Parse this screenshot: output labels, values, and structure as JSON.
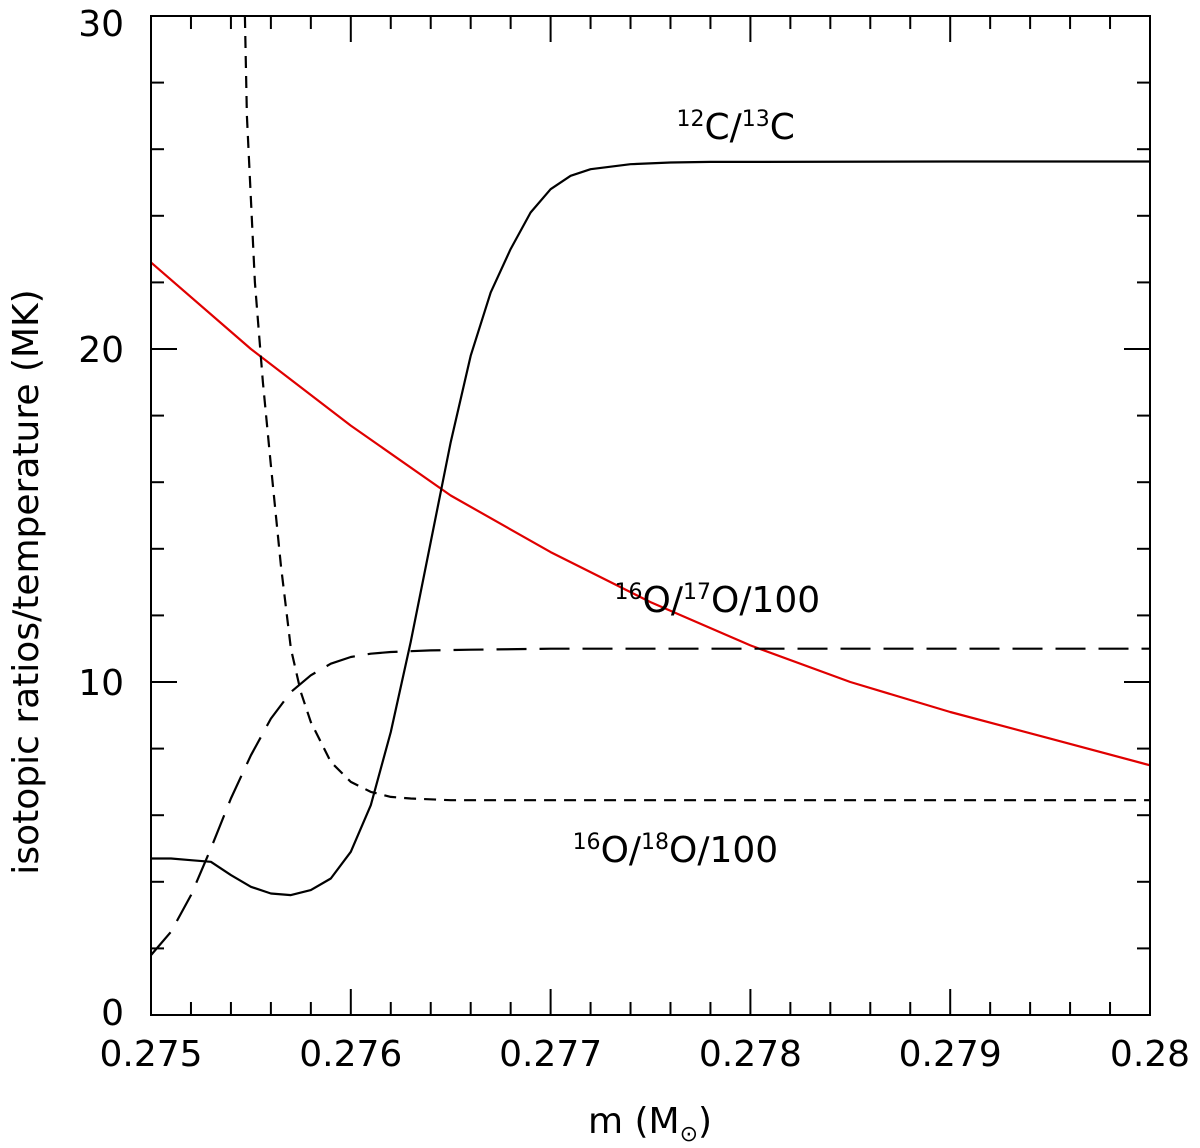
{
  "chart_data": {
    "type": "line",
    "xlabel": "m (M",
    "xlabel_sub": "⊙",
    "xlabel_close": ")",
    "ylabel": "isotopic ratios/temperature (MK)",
    "xlim": [
      0.275,
      0.28
    ],
    "ylim": [
      0,
      30
    ],
    "x_ticks": [
      0.275,
      0.276,
      0.277,
      0.278,
      0.279,
      0.28
    ],
    "x_tick_labels": [
      "0.275",
      "0.276",
      "0.277",
      "0.278",
      "0.279",
      "0.28"
    ],
    "y_ticks": [
      0,
      10,
      20,
      30
    ],
    "y_tick_labels": [
      "0",
      "10",
      "20",
      "30"
    ],
    "grid": false,
    "legend": "none",
    "annotations": [
      {
        "text_parts": [
          [
            "12",
            "sup"
          ],
          [
            "C/",
            ""
          ],
          [
            "13",
            "sup"
          ],
          [
            "C",
            ""
          ]
        ],
        "x": 0.27763,
        "y": 26.3
      },
      {
        "text_parts": [
          [
            "16",
            "sup"
          ],
          [
            "O/",
            ""
          ],
          [
            "17",
            "sup"
          ],
          [
            "O/100",
            ""
          ]
        ],
        "x": 0.27732,
        "y": 12.1
      },
      {
        "text_parts": [
          [
            "16",
            "sup"
          ],
          [
            "O/",
            ""
          ],
          [
            "18",
            "sup"
          ],
          [
            "O/100",
            ""
          ]
        ],
        "x": 0.27711,
        "y": 4.6
      }
    ],
    "series": [
      {
        "id": "temperature",
        "color": "#e00000",
        "style": "solid",
        "x": [
          0.275,
          0.2755,
          0.276,
          0.2765,
          0.277,
          0.2775,
          0.278,
          0.2785,
          0.279,
          0.2795,
          0.28
        ],
        "y": [
          22.6,
          20.0,
          17.7,
          15.6,
          13.9,
          12.4,
          11.1,
          10.0,
          9.1,
          8.3,
          7.5
        ]
      },
      {
        "id": "c12_c13",
        "color": "#000000",
        "style": "solid",
        "x": [
          0.275,
          0.2751,
          0.2752,
          0.2753,
          0.2754,
          0.2755,
          0.2756,
          0.2757,
          0.2758,
          0.2759,
          0.276,
          0.2761,
          0.2762,
          0.2763,
          0.2764,
          0.2765,
          0.2766,
          0.2767,
          0.2768,
          0.2769,
          0.277,
          0.2771,
          0.2772,
          0.2774,
          0.2776,
          0.2778,
          0.278,
          0.279,
          0.28
        ],
        "y": [
          4.7,
          4.7,
          4.65,
          4.6,
          4.2,
          3.85,
          3.65,
          3.6,
          3.75,
          4.1,
          4.9,
          6.3,
          8.5,
          11.2,
          14.2,
          17.2,
          19.8,
          21.7,
          23.0,
          24.1,
          24.8,
          25.2,
          25.4,
          25.55,
          25.6,
          25.62,
          25.62,
          25.63,
          25.63
        ]
      },
      {
        "id": "o16_o17",
        "color": "#000000",
        "style": "long-dash",
        "x": [
          0.275,
          0.2751,
          0.2752,
          0.2753,
          0.2754,
          0.2755,
          0.2756,
          0.2757,
          0.2758,
          0.2759,
          0.276,
          0.2761,
          0.2762,
          0.2764,
          0.2766,
          0.277,
          0.2775,
          0.278,
          0.279,
          0.28
        ],
        "y": [
          1.8,
          2.5,
          3.6,
          5.0,
          6.5,
          7.8,
          8.9,
          9.7,
          10.2,
          10.55,
          10.75,
          10.85,
          10.9,
          10.95,
          10.97,
          11.0,
          11.0,
          11.0,
          11.0,
          11.0
        ]
      },
      {
        "id": "o16_o18",
        "color": "#000000",
        "style": "short-dash",
        "x": [
          0.27547,
          0.27548,
          0.2755,
          0.27552,
          0.27554,
          0.27556,
          0.2756,
          0.27565,
          0.2757,
          0.27575,
          0.2758,
          0.2759,
          0.276,
          0.2761,
          0.2762,
          0.2763,
          0.2765,
          0.277,
          0.278,
          0.279,
          0.28
        ],
        "y": [
          30.0,
          27.0,
          24.5,
          22.0,
          20.5,
          19.0,
          16.5,
          13.5,
          11.0,
          9.7,
          8.8,
          7.6,
          7.0,
          6.7,
          6.55,
          6.5,
          6.45,
          6.45,
          6.45,
          6.45,
          6.45
        ]
      }
    ]
  }
}
